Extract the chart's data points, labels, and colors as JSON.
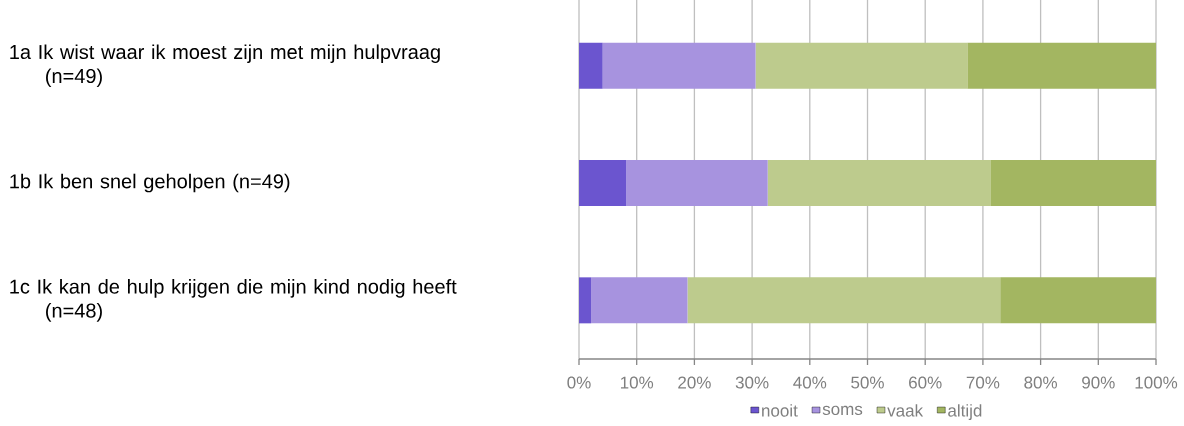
{
  "chart_data": {
    "type": "bar",
    "orientation": "horizontal",
    "stacked": true,
    "categories": [
      "1a Ik wist waar ik moest zijn met mijn hulpvraag (n=49)",
      "1b Ik ben snel geholpen (n=49)",
      "1c Ik kan de hulp krijgen die mijn kind nodig heeft (n=48)"
    ],
    "series": [
      {
        "name": "nooit",
        "color": "#6b55cf",
        "values": [
          4.1,
          8.2,
          2.1
        ]
      },
      {
        "name": "soms",
        "color": "#a793df",
        "values": [
          26.5,
          24.5,
          16.7
        ]
      },
      {
        "name": "vaak",
        "color": "#bdcb8d",
        "values": [
          36.7,
          38.7,
          54.2
        ]
      },
      {
        "name": "altijd",
        "color": "#a3b661",
        "values": [
          32.7,
          28.6,
          27.0
        ]
      }
    ],
    "xlim": [
      0,
      100
    ],
    "xticks": [
      {
        "value": 0,
        "label": "0%"
      },
      {
        "value": 10,
        "label": "10%"
      },
      {
        "value": 20,
        "label": "20%"
      },
      {
        "value": 30,
        "label": "30%"
      },
      {
        "value": 40,
        "label": "40%"
      },
      {
        "value": 50,
        "label": "50%"
      },
      {
        "value": 60,
        "label": "60%"
      },
      {
        "value": 70,
        "label": "70%"
      },
      {
        "value": 80,
        "label": "80%"
      },
      {
        "value": 90,
        "label": "90%"
      },
      {
        "value": 100,
        "label": "100%"
      }
    ],
    "grid": "x",
    "legend": "bottom"
  }
}
